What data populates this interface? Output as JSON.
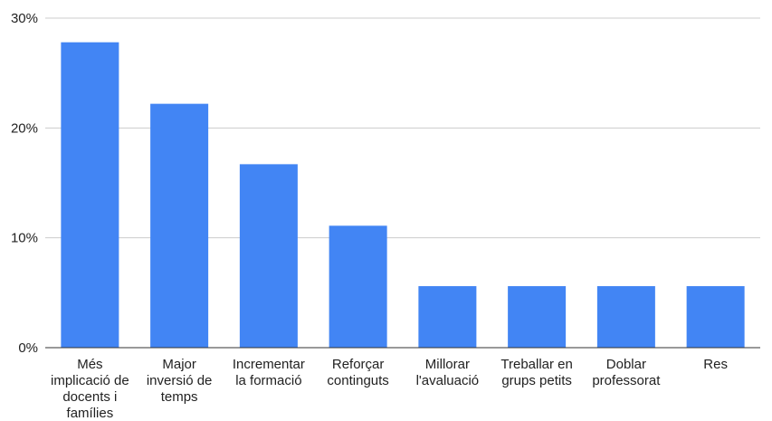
{
  "chart_data": {
    "type": "bar",
    "title": "",
    "xlabel": "",
    "ylabel": "",
    "categories": [
      "Més implicació de docents i famílies",
      "Major inversió de temps",
      "Incrementar la formació",
      "Reforçar continguts",
      "Millorar l'avaluació",
      "Treballar en grups petits",
      "Doblar professorat",
      "Res"
    ],
    "category_lines": [
      [
        "Més",
        "implicació de",
        "docents i",
        "famílies"
      ],
      [
        "Major",
        "inversió de",
        "temps"
      ],
      [
        "Incrementar",
        "la formació"
      ],
      [
        "Reforçar",
        "continguts"
      ],
      [
        "Millorar",
        "l'avaluació"
      ],
      [
        "Treballar en",
        "grups petits"
      ],
      [
        "Doblar",
        "professorat"
      ],
      [
        "Res"
      ]
    ],
    "values": [
      27.8,
      22.2,
      16.7,
      11.1,
      5.6,
      5.6,
      5.6,
      5.6
    ],
    "ylim": [
      0,
      30
    ],
    "yticks": [
      0,
      10,
      20,
      30
    ],
    "ytick_labels": [
      "0%",
      "10%",
      "20%",
      "30%"
    ],
    "grid": true,
    "legend": "none",
    "bar_color": "#4285f4",
    "grid_color": "#cccccc",
    "axis_color": "#333333"
  }
}
